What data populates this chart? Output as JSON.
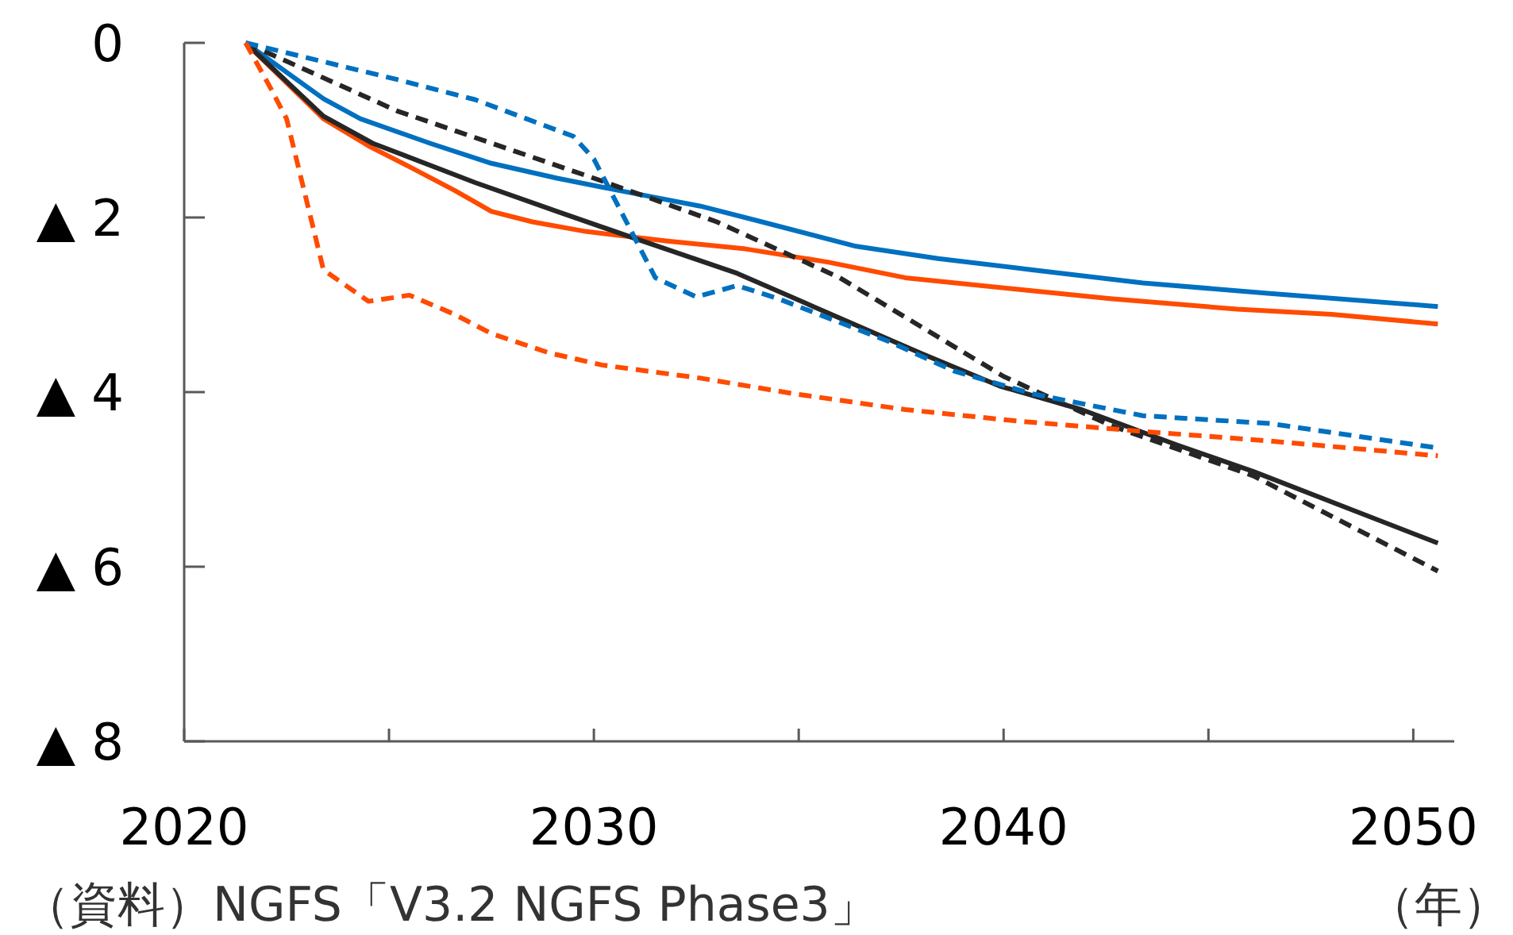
{
  "chart_data": {
    "type": "line",
    "xlabel": "（年）",
    "annotations": [
      "（資料）NGFS「V3.2 NGFS Phase3」"
    ],
    "xlim": [
      2020,
      2051
    ],
    "ylim": [
      -8,
      0
    ],
    "xticks": [
      2020,
      {
        "value": 2025,
        "label": null
      },
      2030,
      {
        "value": 2035,
        "label": null
      },
      2040,
      {
        "value": 2045,
        "label": null
      },
      2050
    ],
    "yticks": [
      0,
      {
        "value": -2,
        "label": "▲ 2"
      },
      {
        "value": -4,
        "label": "▲ 4"
      },
      {
        "value": -6,
        "label": "▲ 6"
      },
      {
        "value": -8,
        "label": "▲ 8"
      }
    ],
    "grid": false,
    "marker": "none",
    "series": [
      {
        "color": "#0070c0",
        "line_style": "solid",
        "x": [
          2021.5,
          2023.4,
          2024.3,
          2026,
          2027.5,
          2029.1,
          2030.6,
          2032.6,
          2034.1,
          2036.4,
          2038.4,
          2040.7,
          2043.4,
          2046.5,
          2050.6
        ],
        "values": [
          0,
          -0.64,
          -0.87,
          -1.15,
          -1.38,
          -1.55,
          -1.69,
          -1.87,
          -2.05,
          -2.33,
          -2.47,
          -2.6,
          -2.75,
          -2.87,
          -3.02
        ]
      },
      {
        "color": "#ff4b00",
        "line_style": "solid",
        "x": [
          2021.5,
          2023.4,
          2024.5,
          2025.5,
          2026.6,
          2027.5,
          2028.5,
          2029.8,
          2031.8,
          2033.7,
          2035.7,
          2037.6,
          2040.3,
          2042.6,
          2045.7,
          2048,
          2050.6
        ],
        "values": [
          0,
          -0.87,
          -1.18,
          -1.42,
          -1.69,
          -1.93,
          -2.05,
          -2.16,
          -2.27,
          -2.36,
          -2.51,
          -2.69,
          -2.82,
          -2.93,
          -3.05,
          -3.11,
          -3.22
        ]
      },
      {
        "color": "#262626",
        "line_style": "solid",
        "x": [
          2021.5,
          2023.4,
          2024.6,
          2027.1,
          2029.1,
          2031,
          2033.5,
          2035.7,
          2038,
          2039.9,
          2041.9,
          2044.2,
          2046.1,
          2048.4,
          2050.6
        ],
        "values": [
          0,
          -0.84,
          -1.15,
          -1.6,
          -1.93,
          -2.24,
          -2.64,
          -3.09,
          -3.56,
          -3.93,
          -4.2,
          -4.6,
          -4.91,
          -5.33,
          -5.73
        ]
      },
      {
        "color": "#262626",
        "line_style": "dashed",
        "x": [
          2021.5,
          2025.2,
          2030,
          2033,
          2036,
          2040,
          2042.6,
          2046.1,
          2050.6
        ],
        "values": [
          0,
          -0.78,
          -1.55,
          -2.05,
          -2.69,
          -3.82,
          -4.38,
          -4.96,
          -6.05
        ]
      },
      {
        "color": "#0070c0",
        "line_style": "dashed",
        "x": [
          2021.5,
          2025.2,
          2027.1,
          2029.5,
          2030,
          2031.5,
          2032.5,
          2033.5,
          2034.5,
          2037.2,
          2038.8,
          2040.7,
          2043.4,
          2046.5,
          2050.6
        ],
        "values": [
          0,
          -0.42,
          -0.65,
          -1.07,
          -1.33,
          -2.69,
          -2.91,
          -2.78,
          -2.93,
          -3.42,
          -3.76,
          -4.02,
          -4.27,
          -4.36,
          -4.64
        ]
      },
      {
        "color": "#ff4b00",
        "line_style": "dashed",
        "x": [
          2021.5,
          2022.1,
          2022.5,
          2023.4,
          2024.5,
          2025.5,
          2026.6,
          2027.5,
          2028.9,
          2030.2,
          2032.6,
          2034.9,
          2037.6,
          2040.3,
          2043.4,
          2046.5,
          2050.6
        ],
        "values": [
          0,
          -0.51,
          -0.87,
          -2.6,
          -2.96,
          -2.89,
          -3.11,
          -3.33,
          -3.55,
          -3.69,
          -3.84,
          -4.02,
          -4.2,
          -4.33,
          -4.45,
          -4.56,
          -4.73
        ]
      }
    ]
  }
}
